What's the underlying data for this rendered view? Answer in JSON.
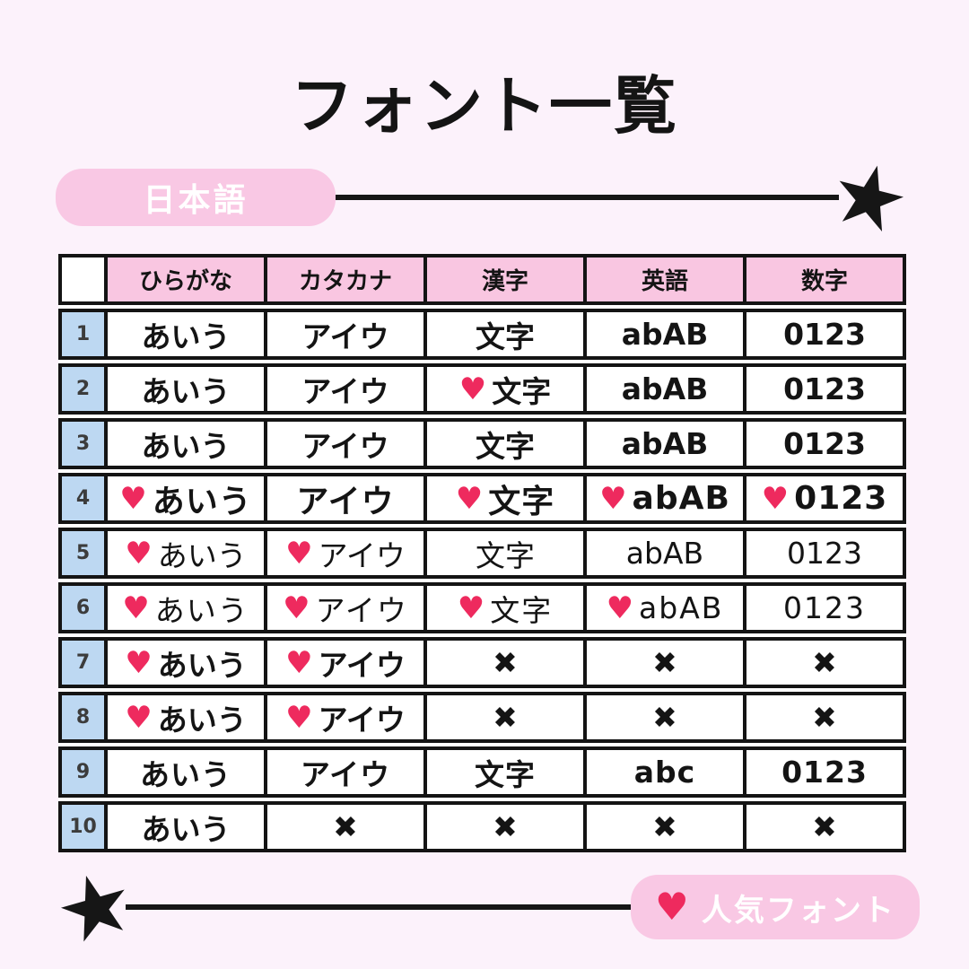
{
  "title": "フォント一覧",
  "top_banner": {
    "label": "日本語"
  },
  "bottom_banner": {
    "label": "人気フォント"
  },
  "icons": {
    "heart": "♥",
    "star": "★",
    "cross": "✖"
  },
  "colors": {
    "background": "#fcf2fb",
    "pill_pink": "#f9c8e4",
    "header_pink": "#f9c6e1",
    "row_number_blue": "#bdd8f2",
    "heart_pink": "#ee2a5e",
    "ink_black": "#141414"
  },
  "table": {
    "headers": [
      "",
      "ひらがな",
      "カタカナ",
      "漢字",
      "英語",
      "数字"
    ],
    "rows": [
      {
        "num": "1",
        "cells": [
          {
            "text": "あいう",
            "heart": false
          },
          {
            "text": "アイウ",
            "heart": false
          },
          {
            "text": "文字",
            "heart": false
          },
          {
            "text": "abAB",
            "heart": false
          },
          {
            "text": "0123",
            "heart": false
          }
        ]
      },
      {
        "num": "2",
        "cells": [
          {
            "text": "あいう",
            "heart": false
          },
          {
            "text": "アイウ",
            "heart": false
          },
          {
            "text": "文字",
            "heart": true
          },
          {
            "text": "abAB",
            "heart": false
          },
          {
            "text": "0123",
            "heart": false
          }
        ]
      },
      {
        "num": "3",
        "cells": [
          {
            "text": "あいう",
            "heart": false
          },
          {
            "text": "アイウ",
            "heart": false
          },
          {
            "text": "文字",
            "heart": false
          },
          {
            "text": "abAB",
            "heart": false
          },
          {
            "text": "0123",
            "heart": false
          }
        ]
      },
      {
        "num": "4",
        "cells": [
          {
            "text": "あいう",
            "heart": true
          },
          {
            "text": "アイウ",
            "heart": false
          },
          {
            "text": "文字",
            "heart": true
          },
          {
            "text": "abAB",
            "heart": true
          },
          {
            "text": "0123",
            "heart": true
          }
        ]
      },
      {
        "num": "5",
        "cells": [
          {
            "text": "あいう",
            "heart": true
          },
          {
            "text": "アイウ",
            "heart": true
          },
          {
            "text": "文字",
            "heart": false
          },
          {
            "text": "abAB",
            "heart": false
          },
          {
            "text": "0123",
            "heart": false
          }
        ]
      },
      {
        "num": "6",
        "cells": [
          {
            "text": "あいう",
            "heart": true
          },
          {
            "text": "アイウ",
            "heart": true
          },
          {
            "text": "文字",
            "heart": true
          },
          {
            "text": "abAB",
            "heart": true
          },
          {
            "text": "0123",
            "heart": false
          }
        ]
      },
      {
        "num": "7",
        "cells": [
          {
            "text": "あいう",
            "heart": true
          },
          {
            "text": "アイウ",
            "heart": true
          },
          {
            "text": "✖",
            "heart": false
          },
          {
            "text": "✖",
            "heart": false
          },
          {
            "text": "✖",
            "heart": false
          }
        ]
      },
      {
        "num": "8",
        "cells": [
          {
            "text": "あいう",
            "heart": true
          },
          {
            "text": "アイウ",
            "heart": true
          },
          {
            "text": "✖",
            "heart": false
          },
          {
            "text": "✖",
            "heart": false
          },
          {
            "text": "✖",
            "heart": false
          }
        ]
      },
      {
        "num": "9",
        "cells": [
          {
            "text": "あいう",
            "heart": false
          },
          {
            "text": "アイウ",
            "heart": false
          },
          {
            "text": "文字",
            "heart": false
          },
          {
            "text": "abc",
            "heart": false
          },
          {
            "text": "0123",
            "heart": false
          }
        ]
      },
      {
        "num": "10",
        "cells": [
          {
            "text": "あいう",
            "heart": false
          },
          {
            "text": "✖",
            "heart": false
          },
          {
            "text": "✖",
            "heart": false
          },
          {
            "text": "✖",
            "heart": false
          },
          {
            "text": "✖",
            "heart": false
          }
        ]
      }
    ]
  }
}
